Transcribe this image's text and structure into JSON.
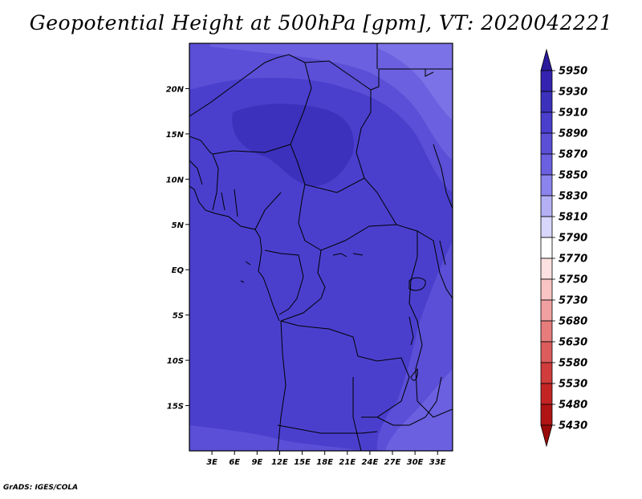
{
  "title": "Geopotential Height at 500hPa [gpm], VT: 2020042221",
  "credit": "GrADS: IGES/COLA",
  "map": {
    "lon_range": [
      0,
      35
    ],
    "lat_range": [
      -20,
      25
    ],
    "x_ticks": [
      {
        "lon": 3,
        "label": "3E"
      },
      {
        "lon": 6,
        "label": "6E"
      },
      {
        "lon": 9,
        "label": "9E"
      },
      {
        "lon": 12,
        "label": "12E"
      },
      {
        "lon": 15,
        "label": "15E"
      },
      {
        "lon": 18,
        "label": "18E"
      },
      {
        "lon": 21,
        "label": "21E"
      },
      {
        "lon": 24,
        "label": "24E"
      },
      {
        "lon": 27,
        "label": "27E"
      },
      {
        "lon": 30,
        "label": "30E"
      },
      {
        "lon": 33,
        "label": "33E"
      }
    ],
    "y_ticks": [
      {
        "lat": 20,
        "label": "20N"
      },
      {
        "lat": 15,
        "label": "15N"
      },
      {
        "lat": 10,
        "label": "10N"
      },
      {
        "lat": 5,
        "label": "5N"
      },
      {
        "lat": 0,
        "label": "EQ"
      },
      {
        "lat": -5,
        "label": "5S"
      },
      {
        "lat": -10,
        "label": "10S"
      },
      {
        "lat": -15,
        "label": "15S"
      }
    ],
    "colors": {
      "c5850": "#6a60e0",
      "c5870": "#5a4fd6",
      "c5890": "#4a3fcd",
      "c5910": "#3c31bc",
      "border": "#000000"
    }
  },
  "colorbar": {
    "levels": [
      "5950",
      "5930",
      "5910",
      "5890",
      "5870",
      "5850",
      "5830",
      "5810",
      "5790",
      "5770",
      "5750",
      "5730",
      "5680",
      "5630",
      "5580",
      "5530",
      "5480",
      "5430"
    ],
    "colors": [
      "#2a1a9c",
      "#3423b0",
      "#3c31bc",
      "#4a3fcd",
      "#5a4fd6",
      "#6a60e0",
      "#8a84ec",
      "#b3b0f4",
      "#d8d6fa",
      "#ffffff",
      "#fde0e0",
      "#f9c4c4",
      "#f0a0a0",
      "#e67c7c",
      "#dc5c5c",
      "#d13c3c",
      "#c42424",
      "#b01414",
      "#9a0a0a"
    ]
  }
}
